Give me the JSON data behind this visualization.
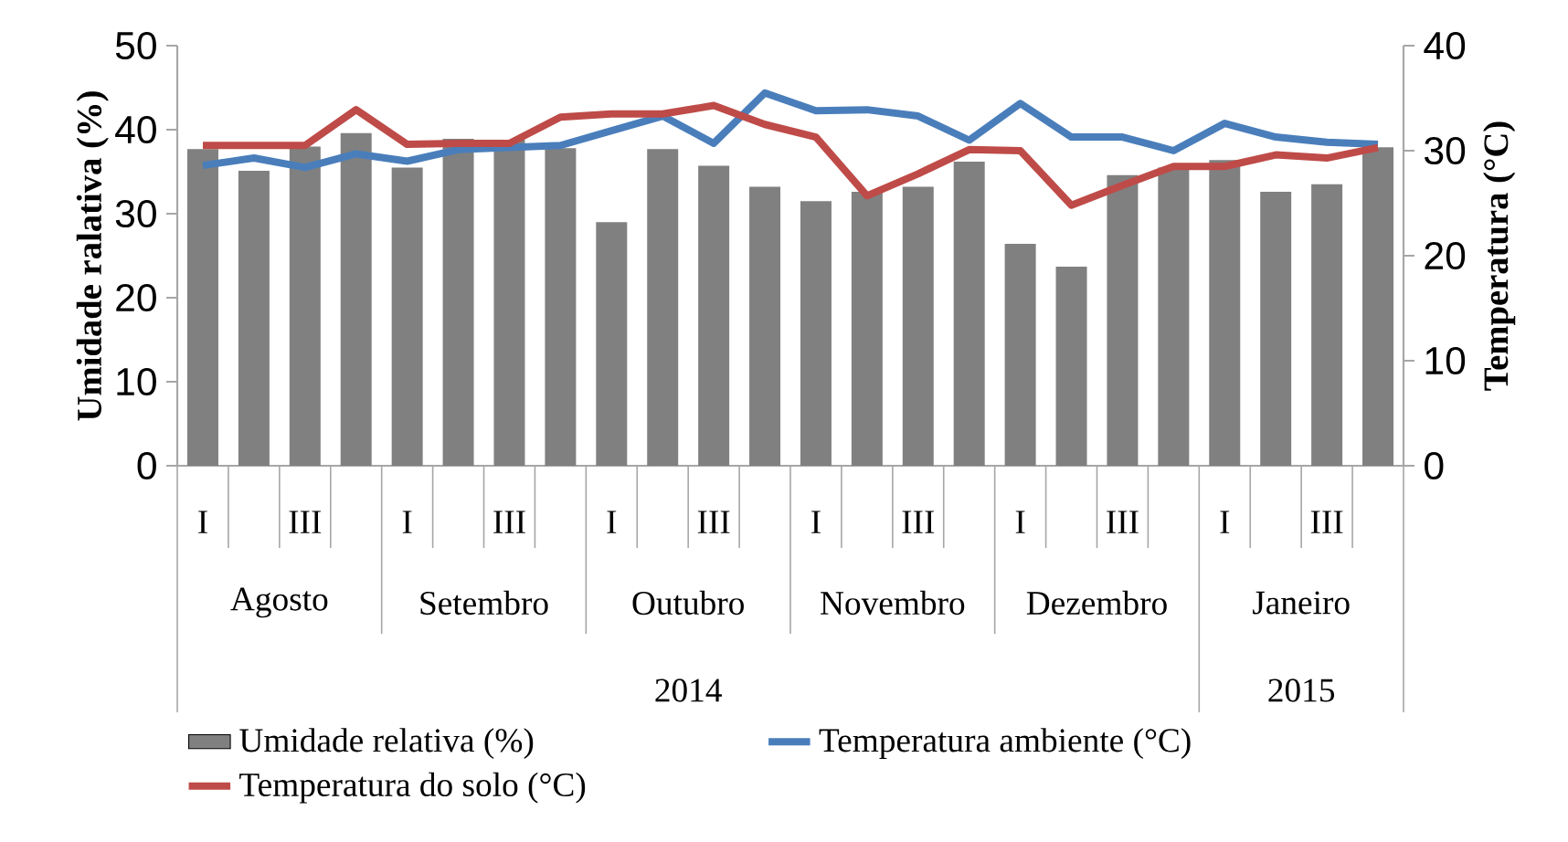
{
  "chart_data": {
    "type": "bar",
    "ylabel": "Umidade ralativa (%)",
    "y2label": "Temperatura (°C)",
    "categories": [
      "I",
      null,
      "III",
      null,
      "I",
      null,
      "III",
      null,
      "I",
      null,
      "III",
      null,
      "I",
      null,
      "III",
      null,
      "I",
      null,
      "III",
      null,
      "I",
      null,
      "III",
      null
    ],
    "annotations": [
      "Agosto",
      "Setembro",
      "Outubro",
      "Novembro",
      "Dezembro",
      "Janeiro",
      "2014",
      "2015"
    ],
    "ylim": [
      0,
      50
    ],
    "yticks": [
      0,
      10,
      20,
      30,
      40,
      50
    ],
    "y2lim": [
      0,
      40
    ],
    "y2ticks": [
      0,
      10,
      20,
      30,
      40
    ],
    "legend": "bottom",
    "series": [
      {
        "name": "Umidade relativa (%)",
        "axis": "y",
        "color": "#808080",
        "values": [
          37.7,
          35.1,
          38.0,
          39.6,
          35.5,
          38.9,
          38.8,
          37.8,
          29.0,
          37.7,
          35.7,
          33.2,
          31.5,
          32.6,
          33.2,
          36.2,
          26.4,
          23.7,
          34.6,
          35.5,
          36.4,
          32.6,
          33.5,
          37.9
        ]
      },
      {
        "name": "Temperatura ambiente (°C)",
        "type": "line",
        "axis": "y2",
        "color": "#4a7ebb",
        "values": [
          28.6,
          29.3,
          28.4,
          29.7,
          29.0,
          30.1,
          30.3,
          30.5,
          31.9,
          33.3,
          30.7,
          35.5,
          33.8,
          33.9,
          33.3,
          31.0,
          34.5,
          31.3,
          31.3,
          30.0,
          32.6,
          31.3,
          30.8,
          30.6
        ]
      },
      {
        "name": "Temperatura do solo (°C)",
        "type": "line",
        "axis": "y2",
        "color": "#be4b48",
        "values": [
          30.5,
          30.5,
          30.5,
          33.9,
          30.6,
          30.7,
          30.7,
          33.2,
          33.5,
          33.5,
          34.3,
          32.5,
          31.3,
          25.7,
          27.8,
          30.1,
          30.0,
          24.8,
          26.7,
          28.5,
          28.5,
          29.6,
          29.3,
          30.3
        ]
      }
    ]
  }
}
